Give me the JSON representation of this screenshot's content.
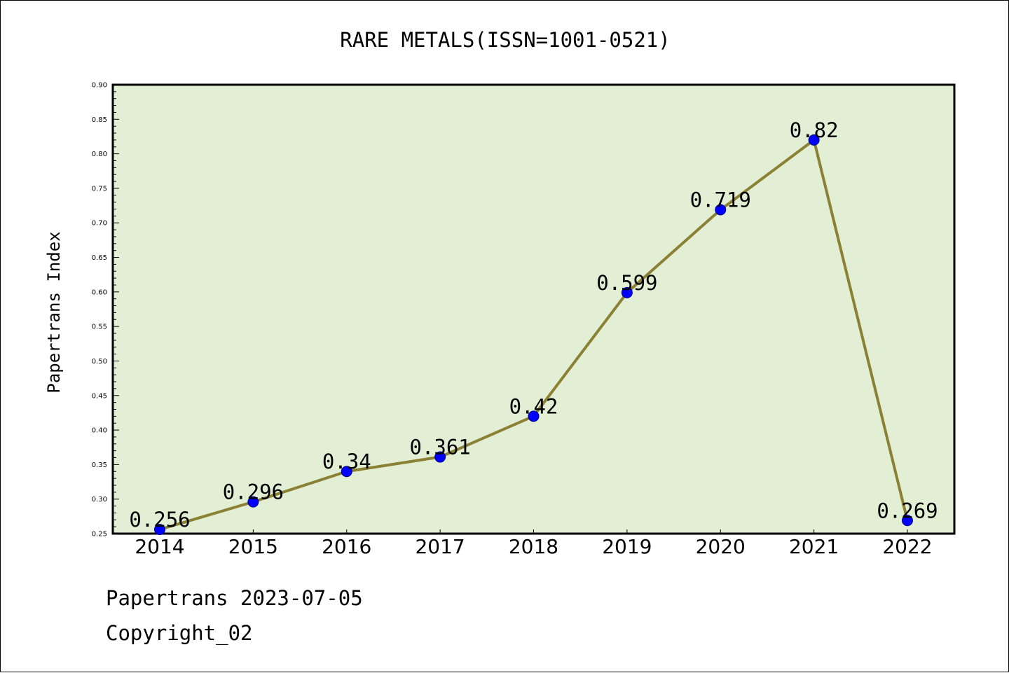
{
  "chart_data": {
    "type": "line",
    "title": "RARE METALS(ISSN=1001-0521)",
    "xlabel": "",
    "ylabel": "Papertrans Index",
    "categories": [
      "2014",
      "2015",
      "2016",
      "2017",
      "2018",
      "2019",
      "2020",
      "2021",
      "2022"
    ],
    "values": [
      0.256,
      0.296,
      0.34,
      0.361,
      0.42,
      0.599,
      0.719,
      0.82,
      0.269
    ],
    "data_labels": [
      "0.256",
      "0.296",
      "0.34",
      "0.361",
      "0.42",
      "0.599",
      "0.719",
      "0.82",
      "0.269"
    ],
    "ylim": [
      0.25,
      0.9
    ],
    "yticks": [
      0.25,
      0.3,
      0.35,
      0.4,
      0.45,
      0.5,
      0.55,
      0.6,
      0.65,
      0.7,
      0.75,
      0.8,
      0.85,
      0.9
    ],
    "ytick_labels": [
      "0.25",
      "0.30",
      "0.35",
      "0.40",
      "0.45",
      "0.50",
      "0.55",
      "0.60",
      "0.65",
      "0.70",
      "0.75",
      "0.80",
      "0.85",
      "0.90"
    ],
    "grid": false,
    "legend": "none",
    "colors": {
      "plot_background": "#e2efd5",
      "line": "#8b8135",
      "marker": "#0000ff",
      "marker_edge": "#00008b",
      "axes": "#000000"
    }
  },
  "footer": {
    "source": "Papertrans 2023-07-05",
    "copyright": "Copyright_02"
  }
}
